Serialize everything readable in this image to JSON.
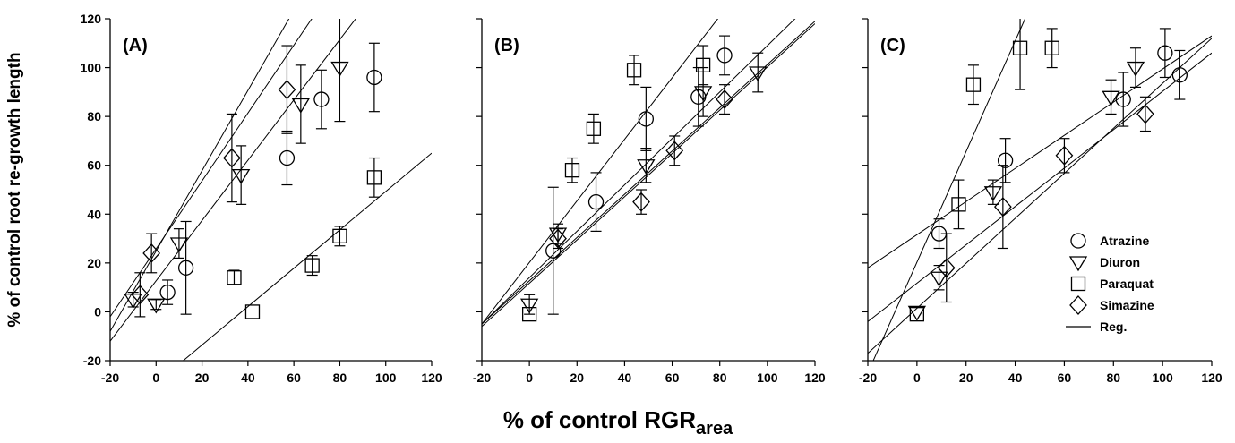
{
  "chart_data": {
    "type": "scatter",
    "ylabel": "% of control root re-growth length",
    "xlabel": "% of control RGR",
    "xlabel_subscript": "area",
    "xlim": [
      -20,
      120
    ],
    "ylim": [
      -20,
      120
    ],
    "xticks": [
      "-20",
      "0",
      "20",
      "40",
      "60",
      "80",
      "100",
      "120"
    ],
    "yticks": [
      "-20",
      "0",
      "20",
      "40",
      "60",
      "80",
      "100",
      "120"
    ],
    "legend": {
      "placement": "lower-right of panel C",
      "entries": [
        {
          "label": "Atrazine",
          "marker": "circle"
        },
        {
          "label": "Diuron",
          "marker": "triangle-down"
        },
        {
          "label": "Paraquat",
          "marker": "square"
        },
        {
          "label": "Simazine",
          "marker": "diamond"
        },
        {
          "label": "Reg.",
          "marker": "line"
        }
      ]
    },
    "panels": [
      {
        "label": "(A)",
        "series": [
          {
            "marker": "circle",
            "points": [
              [
                5,
                8,
                5
              ],
              [
                13,
                18,
                19
              ],
              [
                57,
                63,
                11
              ],
              [
                72,
                87,
                12
              ],
              [
                95,
                96,
                14
              ]
            ],
            "fit": [
              [
                -20,
                -12
              ],
              [
                95,
                130
              ]
            ]
          },
          {
            "marker": "triangle-down",
            "points": [
              [
                -10,
                5,
                3
              ],
              [
                0,
                3,
                2
              ],
              [
                10,
                28,
                6
              ],
              [
                37,
                56,
                12
              ],
              [
                63,
                85,
                16
              ],
              [
                80,
                100,
                22
              ]
            ],
            "fit": [
              [
                -20,
                -2
              ],
              [
                80,
                137
              ]
            ]
          },
          {
            "marker": "square",
            "points": [
              [
                34,
                14,
                3
              ],
              [
                42,
                0,
                0
              ],
              [
                68,
                19,
                4
              ],
              [
                80,
                31,
                4
              ],
              [
                95,
                55,
                8
              ]
            ],
            "fit": [
              [
                -20,
                -45
              ],
              [
                120,
                65
              ]
            ]
          },
          {
            "marker": "diamond",
            "points": [
              [
                -7,
                7,
                9
              ],
              [
                -2,
                24,
                8
              ],
              [
                33,
                63,
                18
              ],
              [
                57,
                91,
                18
              ]
            ],
            "fit": [
              [
                -20,
                -8
              ],
              [
                70,
                140
              ]
            ]
          }
        ]
      },
      {
        "label": "(B)",
        "series": [
          {
            "marker": "circle",
            "points": [
              [
                10,
                25,
                26
              ],
              [
                28,
                45,
                12
              ],
              [
                49,
                79,
                13
              ],
              [
                71,
                88,
                12
              ],
              [
                82,
                105,
                8
              ]
            ],
            "fit": [
              [
                -20,
                -5
              ],
              [
                95,
                140
              ]
            ]
          },
          {
            "marker": "triangle-down",
            "points": [
              [
                0,
                3,
                4
              ],
              [
                12,
                32,
                4
              ],
              [
                49,
                60,
                7
              ],
              [
                73,
                90,
                10
              ],
              [
                96,
                98,
                8
              ]
            ],
            "fit": [
              [
                -20,
                -6
              ],
              [
                120,
                118
              ]
            ]
          },
          {
            "marker": "square",
            "points": [
              [
                0,
                -1,
                0
              ],
              [
                18,
                58,
                5
              ],
              [
                27,
                75,
                6
              ],
              [
                44,
                99,
                6
              ],
              [
                73,
                101,
                8
              ]
            ],
            "fit": [
              [
                -20,
                -5
              ],
              [
                120,
                128
              ]
            ]
          },
          {
            "marker": "diamond",
            "points": [
              [
                12,
                30,
                4
              ],
              [
                47,
                45,
                5
              ],
              [
                61,
                66,
                6
              ],
              [
                82,
                87,
                6
              ]
            ],
            "fit": [
              [
                -20,
                -5
              ],
              [
                120,
                119
              ]
            ]
          }
        ]
      },
      {
        "label": "(C)",
        "series": [
          {
            "marker": "circle",
            "points": [
              [
                9,
                32,
                6
              ],
              [
                36,
                62,
                9
              ],
              [
                84,
                87,
                11
              ],
              [
                101,
                106,
                10
              ],
              [
                107,
                97,
                10
              ]
            ],
            "fit": [
              [
                -20,
                18
              ],
              [
                120,
                113
              ]
            ]
          },
          {
            "marker": "triangle-down",
            "points": [
              [
                0,
                0,
                0
              ],
              [
                9,
                14,
                5
              ],
              [
                31,
                49,
                5
              ],
              [
                79,
                88,
                7
              ],
              [
                89,
                100,
                8
              ]
            ],
            "fit": [
              [
                -20,
                -4
              ],
              [
                120,
                106
              ]
            ]
          },
          {
            "marker": "square",
            "points": [
              [
                0,
                -1,
                0
              ],
              [
                17,
                44,
                10
              ],
              [
                23,
                93,
                8
              ],
              [
                42,
                108,
                17
              ],
              [
                55,
                108,
                8
              ]
            ],
            "fit": [
              [
                -20,
                -25
              ],
              [
                44,
                120
              ]
            ]
          },
          {
            "marker": "diamond",
            "points": [
              [
                12,
                18,
                14
              ],
              [
                35,
                43,
                17
              ],
              [
                60,
                64,
                7
              ],
              [
                93,
                81,
                7
              ]
            ],
            "fit": [
              [
                -20,
                -17
              ],
              [
                120,
                112
              ]
            ]
          }
        ]
      }
    ]
  }
}
